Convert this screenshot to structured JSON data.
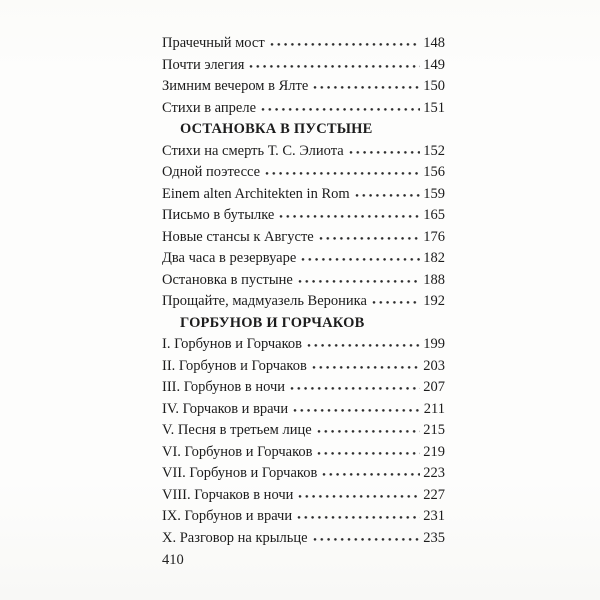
{
  "page": {
    "footer_page_number": "410"
  },
  "colors": {
    "text": "#1c1c1c",
    "background": "#fdfdfc",
    "dot_leader": "#2b2b2b"
  },
  "toc": {
    "rows": [
      {
        "type": "entry",
        "title": "Прачечный мост",
        "page": "148"
      },
      {
        "type": "entry",
        "title": "Почти элегия",
        "page": "149"
      },
      {
        "type": "entry",
        "title": "Зимним вечером в Ялте",
        "page": "150"
      },
      {
        "type": "entry",
        "title": "Стихи в апреле",
        "page": "151"
      },
      {
        "type": "heading",
        "title": "ОСТАНОВКА В ПУСТЫНЕ"
      },
      {
        "type": "entry",
        "title": "Стихи на смерть Т. С. Элиота",
        "page": "152"
      },
      {
        "type": "entry",
        "title": "Одной поэтессе",
        "page": "156"
      },
      {
        "type": "entry",
        "title": "Einem alten Architekten in Rom",
        "page": "159"
      },
      {
        "type": "entry",
        "title": "Письмо в бутылке",
        "page": "165"
      },
      {
        "type": "entry",
        "title": "Новые стансы к Августе",
        "page": "176"
      },
      {
        "type": "entry",
        "title": "Два часа в резервуаре",
        "page": "182"
      },
      {
        "type": "entry",
        "title": "Остановка в пустыне",
        "page": "188"
      },
      {
        "type": "entry",
        "title": "Прощайте, мадмуазель Вероника",
        "page": "192"
      },
      {
        "type": "heading",
        "title": "ГОРБУНОВ И ГОРЧАКОВ"
      },
      {
        "type": "entry",
        "title": "I. Горбунов и Горчаков",
        "page": "199"
      },
      {
        "type": "entry",
        "title": "II. Горбунов и Горчаков",
        "page": "203"
      },
      {
        "type": "entry",
        "title": "III. Горбунов в ночи",
        "page": "207"
      },
      {
        "type": "entry",
        "title": "IV. Горчаков и врачи",
        "page": "211"
      },
      {
        "type": "entry",
        "title": "V. Песня в третьем лице",
        "page": "215"
      },
      {
        "type": "entry",
        "title": "VI. Горбунов и Горчаков",
        "page": "219"
      },
      {
        "type": "entry",
        "title": "VII. Горбунов и Горчаков",
        "page": "223"
      },
      {
        "type": "entry",
        "title": "VIII. Горчаков в ночи",
        "page": "227"
      },
      {
        "type": "entry",
        "title": "IX. Горбунов и врачи",
        "page": "231"
      },
      {
        "type": "entry",
        "title": "X. Разговор на крыльце",
        "page": "235"
      }
    ]
  }
}
